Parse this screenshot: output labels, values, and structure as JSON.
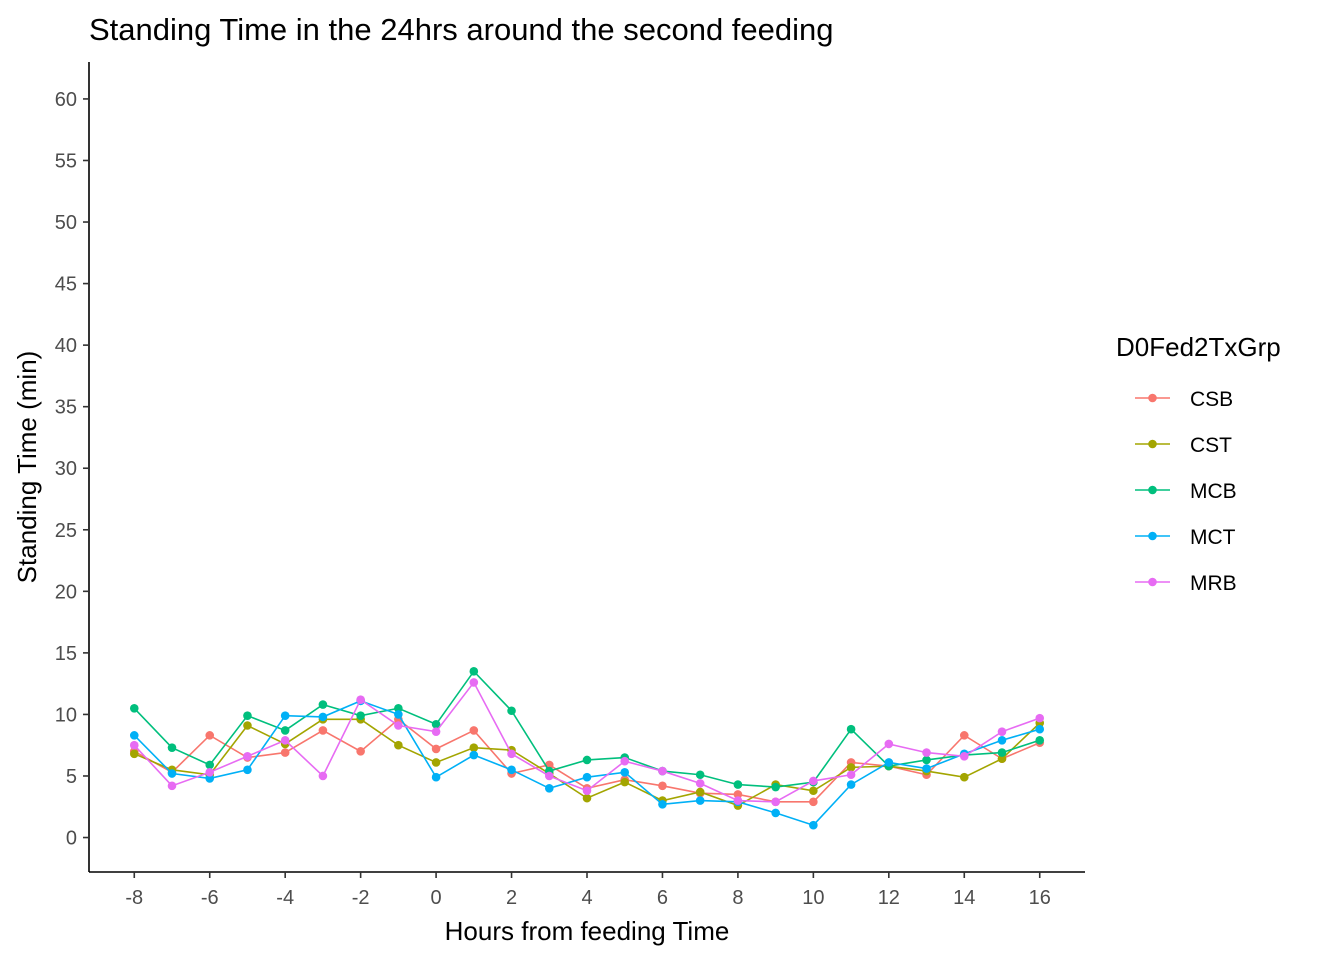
{
  "chart_data": {
    "type": "line",
    "title": "Standing Time in the 24hrs around the second feeding",
    "xlabel": "Hours from feeding Time",
    "ylabel": "Standing Time (min)",
    "xlim": [
      -9.2,
      17.2
    ],
    "ylim": [
      -2.8,
      63
    ],
    "x_ticks": [
      -8,
      -6,
      -4,
      -2,
      0,
      2,
      4,
      6,
      8,
      10,
      12,
      14,
      16
    ],
    "x_tick_labels": [
      "-8",
      "-6",
      "-4",
      "-2",
      "0",
      "2",
      "4",
      "6",
      "8",
      "10",
      "12",
      "14",
      "16"
    ],
    "y_ticks": [
      0,
      5,
      10,
      15,
      20,
      25,
      30,
      35,
      40,
      45,
      50,
      55,
      60
    ],
    "y_tick_labels": [
      "0",
      "5",
      "10",
      "15",
      "20",
      "25",
      "30",
      "35",
      "40",
      "45",
      "50",
      "55",
      "60"
    ],
    "grid": false,
    "legend": {
      "title": "D0Fed2TxGrp",
      "position": "right"
    },
    "x": [
      -8,
      -7,
      -6,
      -5,
      -4,
      -3,
      -2,
      -1,
      0,
      1,
      2,
      3,
      4,
      5,
      6,
      7,
      8,
      9,
      10,
      11,
      12,
      13,
      14,
      15,
      16
    ],
    "series": [
      {
        "name": "CSB",
        "color": "#F8766D",
        "values": [
          7.0,
          5.3,
          8.3,
          6.5,
          6.9,
          8.7,
          7.0,
          9.6,
          7.2,
          8.7,
          5.2,
          5.9,
          4.0,
          4.7,
          4.2,
          3.6,
          3.5,
          2.9,
          2.9,
          6.1,
          5.8,
          5.1,
          8.3,
          6.4,
          7.7
        ]
      },
      {
        "name": "CST",
        "color": "#A3A500",
        "values": [
          6.8,
          5.5,
          5.1,
          9.1,
          7.6,
          9.6,
          9.6,
          7.5,
          6.1,
          7.3,
          7.1,
          5.2,
          3.2,
          4.5,
          3.0,
          3.7,
          2.6,
          4.3,
          3.8,
          5.7,
          5.8,
          5.4,
          4.9,
          6.4,
          9.3
        ]
      },
      {
        "name": "MCB",
        "color": "#00BF7D",
        "values": [
          10.5,
          7.3,
          5.9,
          9.9,
          8.7,
          10.8,
          9.9,
          10.5,
          9.2,
          13.5,
          10.3,
          5.4,
          6.3,
          6.5,
          5.4,
          5.1,
          4.3,
          4.1,
          4.5,
          8.8,
          5.8,
          6.3,
          6.7,
          6.9,
          7.9
        ]
      },
      {
        "name": "MCT",
        "color": "#00B0F6",
        "values": [
          8.3,
          5.2,
          4.8,
          5.5,
          9.9,
          9.8,
          11.1,
          10.0,
          4.9,
          6.7,
          5.5,
          4.0,
          4.9,
          5.3,
          2.7,
          3.0,
          2.9,
          2.0,
          1.0,
          4.3,
          6.1,
          5.6,
          6.8,
          7.9,
          8.8
        ]
      },
      {
        "name": "MRB",
        "color": "#E76BF3",
        "values": [
          7.5,
          4.2,
          5.3,
          6.6,
          7.9,
          5.0,
          11.2,
          9.1,
          8.6,
          12.6,
          6.8,
          5.0,
          3.8,
          6.2,
          5.4,
          4.4,
          3.0,
          2.9,
          4.6,
          5.1,
          7.6,
          6.9,
          6.6,
          8.6,
          9.7
        ]
      }
    ]
  }
}
